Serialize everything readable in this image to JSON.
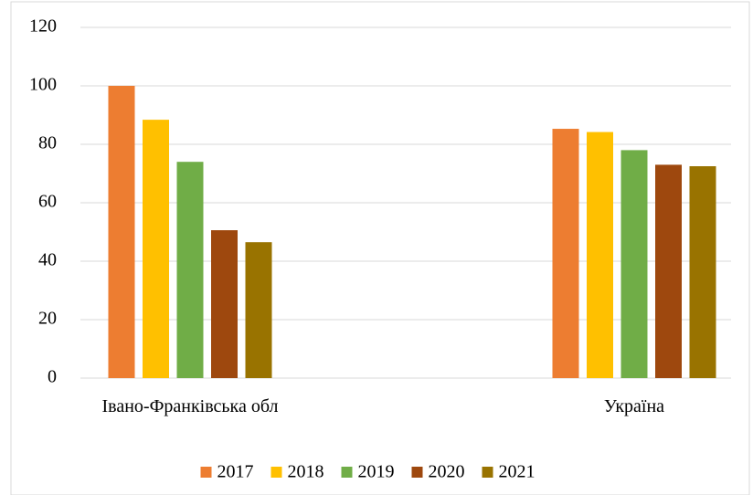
{
  "chart_data": {
    "type": "bar",
    "categories": [
      "Івано-Франківська обл",
      "Україна"
    ],
    "series": [
      {
        "name": "2017",
        "color": "#ed7d31",
        "values": [
          100,
          85.3
        ]
      },
      {
        "name": "2018",
        "color": "#ffc000",
        "values": [
          88.4,
          84.2
        ]
      },
      {
        "name": "2019",
        "color": "#70ad47",
        "values": [
          74,
          78
        ]
      },
      {
        "name": "2020",
        "color": "#9e480e",
        "values": [
          50.6,
          73
        ]
      },
      {
        "name": "2021",
        "color": "#997300",
        "values": [
          46.5,
          72.5
        ]
      }
    ],
    "ylim": [
      0,
      120
    ],
    "yticks": [
      0,
      20,
      40,
      60,
      80,
      100,
      120
    ],
    "grid": true,
    "legend": "bottom"
  }
}
